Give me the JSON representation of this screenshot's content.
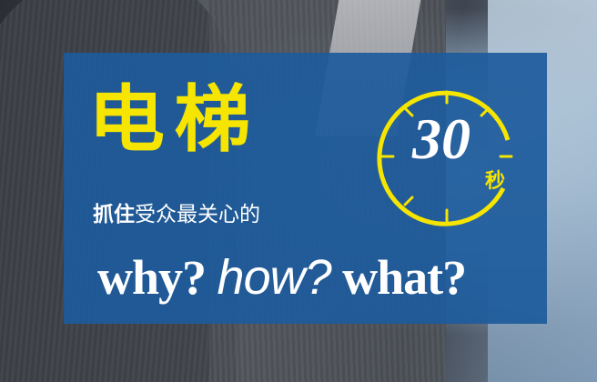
{
  "title": "电梯",
  "subtitle_bold": "抓住",
  "subtitle_rest": "受众最关心的",
  "questions": {
    "why": "why?",
    "how": "how?",
    "what": "what?"
  },
  "timer": {
    "value": "30",
    "unit": "秒"
  },
  "colors": {
    "panel": "#1d5b9c",
    "accent": "#f5e500",
    "text": "#ffffff"
  }
}
